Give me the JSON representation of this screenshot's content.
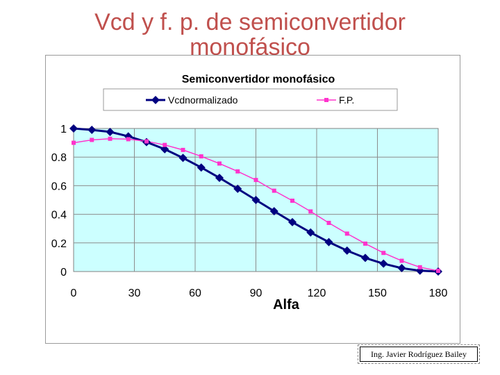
{
  "slide": {
    "title_line1": "Vcd  y f. p. de semiconvertidor",
    "title_line2": "monofásico",
    "footer_credit": "Ing. Javier Rodríguez Bailey"
  },
  "colors": {
    "title": "#c0504d",
    "plot_bg": "#ccffff",
    "series_vcd": "#000080",
    "series_fp": "#ff33cc",
    "grid": "#8c8c8c"
  },
  "chart_data": {
    "type": "line",
    "title": "Semiconvertidor   monofásico",
    "xlabel": "Alfa",
    "ylabel": "",
    "xlim": [
      0,
      180
    ],
    "ylim": [
      0,
      1
    ],
    "x_ticks": [
      "0",
      "30",
      "60",
      "90",
      "120",
      "150",
      "180"
    ],
    "y_ticks": [
      "0",
      "0.2",
      "0.4",
      "0.6",
      "0.8",
      "1"
    ],
    "grid": true,
    "legend_position": "top",
    "series": [
      {
        "name": "Vcdnormalizado",
        "marker": "diamond",
        "color": "#000080",
        "x": [
          0,
          9,
          18,
          27,
          36,
          45,
          54,
          63,
          72,
          81,
          90,
          99,
          108,
          117,
          126,
          135,
          144,
          153,
          162,
          171,
          180
        ],
        "y": [
          1.0,
          0.99,
          0.976,
          0.945,
          0.905,
          0.855,
          0.794,
          0.727,
          0.655,
          0.578,
          0.5,
          0.422,
          0.345,
          0.273,
          0.206,
          0.146,
          0.095,
          0.055,
          0.024,
          0.006,
          0.0
        ]
      },
      {
        "name": "F.P.",
        "marker": "square",
        "color": "#ff33cc",
        "x": [
          0,
          9,
          18,
          27,
          36,
          45,
          54,
          63,
          72,
          81,
          90,
          99,
          108,
          117,
          126,
          135,
          144,
          153,
          162,
          171,
          180
        ],
        "y": [
          0.9,
          0.92,
          0.928,
          0.925,
          0.91,
          0.885,
          0.85,
          0.805,
          0.755,
          0.7,
          0.64,
          0.565,
          0.495,
          0.42,
          0.34,
          0.265,
          0.195,
          0.13,
          0.075,
          0.03,
          0.005
        ]
      }
    ]
  }
}
